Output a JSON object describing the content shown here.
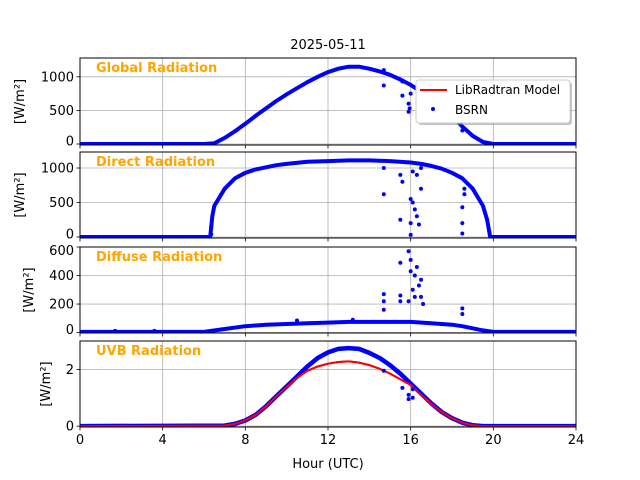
{
  "chart_data": {
    "type": "scatter",
    "title": "2025-05-11",
    "xlabel": "Hour (UTC)",
    "xlim": [
      0,
      24
    ],
    "xticks": [
      "0",
      "4",
      "8",
      "12",
      "16",
      "20",
      "24"
    ],
    "xtick_values": [
      0,
      4,
      8,
      12,
      16,
      20,
      24
    ],
    "grid": true,
    "legend": {
      "placement": "top-right of first panel",
      "entries": [
        "LibRadtran Model",
        "BSRN"
      ]
    },
    "colors": {
      "model": "#ff0000",
      "bsrn": "#0000ff",
      "title": "#ffa500"
    },
    "panels": [
      {
        "name": "Global Radiation",
        "ylabel": "[W/m²]",
        "ylim": [
          -15,
          1280
        ],
        "yticks": [
          "0",
          "500",
          "1000"
        ],
        "ytick_values": [
          0,
          500,
          1000
        ],
        "x": [
          0,
          6,
          6.5,
          7,
          7.5,
          8,
          8.5,
          9,
          9.5,
          10,
          10.5,
          11,
          11.5,
          12,
          12.5,
          13,
          13.5,
          14,
          14.5,
          15,
          15.5,
          16,
          16.5,
          17,
          17.5,
          18,
          18.5,
          19,
          19.5,
          20,
          24
        ],
        "model": [
          0,
          0,
          10,
          90,
          190,
          300,
          420,
          530,
          640,
          740,
          830,
          920,
          1000,
          1070,
          1120,
          1150,
          1150,
          1120,
          1080,
          1030,
          960,
          880,
          780,
          690,
          570,
          420,
          260,
          120,
          30,
          0,
          0
        ],
        "bsrn": [
          0,
          0,
          10,
          90,
          190,
          300,
          420,
          530,
          640,
          740,
          830,
          920,
          1000,
          1070,
          1120,
          1150,
          1150,
          1120,
          1080,
          1030,
          960,
          880,
          780,
          690,
          570,
          420,
          260,
          120,
          30,
          0,
          0
        ],
        "bsrn_outliers": [
          [
            14.7,
            870
          ],
          [
            14.7,
            1100
          ],
          [
            15.6,
            720
          ],
          [
            15.6,
            930
          ],
          [
            15.9,
            600
          ],
          [
            15.9,
            480
          ],
          [
            15.95,
            530
          ],
          [
            16.0,
            750
          ],
          [
            18.5,
            200
          ],
          [
            18.5,
            350
          ]
        ]
      },
      {
        "name": "Direct Radiation",
        "ylabel": "[W/m²]",
        "ylim": [
          -15,
          1232
        ],
        "yticks": [
          "0",
          "500",
          "1000"
        ],
        "ytick_values": [
          0,
          500,
          1000
        ],
        "x": [
          0,
          6.3,
          6.4,
          6.5,
          7,
          7.5,
          8,
          8.5,
          9,
          9.5,
          10,
          11,
          12,
          13,
          14,
          15,
          16,
          16.5,
          17,
          17.5,
          18,
          18.5,
          19,
          19.5,
          19.7,
          19.85,
          24
        ],
        "model": [
          0,
          0,
          300,
          450,
          700,
          850,
          930,
          980,
          1010,
          1040,
          1060,
          1090,
          1100,
          1110,
          1110,
          1100,
          1080,
          1060,
          1030,
          990,
          930,
          850,
          700,
          450,
          250,
          0,
          0
        ],
        "bsrn": [
          0,
          0,
          300,
          450,
          700,
          850,
          930,
          980,
          1010,
          1040,
          1060,
          1090,
          1100,
          1110,
          1110,
          1100,
          1080,
          1060,
          1030,
          990,
          930,
          850,
          700,
          450,
          250,
          0,
          0
        ],
        "bsrn_outliers": [
          [
            6.35,
            40
          ],
          [
            6.35,
            150
          ],
          [
            14.7,
            620
          ],
          [
            14.7,
            1000
          ],
          [
            15.5,
            250
          ],
          [
            15.5,
            900
          ],
          [
            15.6,
            800
          ],
          [
            16,
            550
          ],
          [
            16,
            200
          ],
          [
            16,
            30
          ],
          [
            16.1,
            500
          ],
          [
            16.1,
            950
          ],
          [
            16.2,
            400
          ],
          [
            16.3,
            300
          ],
          [
            16.3,
            900
          ],
          [
            16.4,
            180
          ],
          [
            16.5,
            700
          ],
          [
            16.5,
            1000
          ],
          [
            18.5,
            50
          ],
          [
            18.5,
            200
          ],
          [
            18.5,
            430
          ],
          [
            18.6,
            620
          ],
          [
            18.6,
            700
          ]
        ]
      },
      {
        "name": "Diffuse Radiation",
        "ylabel": "[W/m²]",
        "ylim": [
          -3,
          600
        ],
        "yticks": [
          "0",
          "200",
          "400",
          "600"
        ],
        "ytick_values": [
          0,
          200,
          400,
          600
        ],
        "x": [
          0,
          6,
          7,
          8,
          9,
          10,
          11,
          12,
          13,
          14,
          15,
          16,
          17,
          18,
          18.5,
          19,
          19.5,
          20,
          24
        ],
        "model": [
          5,
          5,
          25,
          45,
          55,
          60,
          65,
          70,
          75,
          75,
          75,
          75,
          65,
          55,
          45,
          30,
          15,
          5,
          5
        ],
        "bsrn": [
          5,
          5,
          25,
          45,
          55,
          60,
          65,
          70,
          75,
          75,
          75,
          75,
          65,
          55,
          45,
          30,
          15,
          5,
          5
        ],
        "bsrn_outliers": [
          [
            1.7,
            12
          ],
          [
            3.6,
            12
          ],
          [
            10.5,
            85
          ],
          [
            13.2,
            90
          ],
          [
            14.7,
            270
          ],
          [
            14.7,
            220
          ],
          [
            14.7,
            160
          ],
          [
            15.5,
            490
          ],
          [
            15.5,
            260
          ],
          [
            15.5,
            220
          ],
          [
            15.9,
            570
          ],
          [
            15.9,
            220
          ],
          [
            16,
            510
          ],
          [
            16,
            430
          ],
          [
            16.1,
            300
          ],
          [
            16.2,
            400
          ],
          [
            16.2,
            250
          ],
          [
            16.3,
            460
          ],
          [
            16.4,
            330
          ],
          [
            16.5,
            370
          ],
          [
            16.5,
            250
          ],
          [
            16.6,
            200
          ],
          [
            18.5,
            170
          ],
          [
            18.5,
            130
          ]
        ]
      },
      {
        "name": "UVB Radiation",
        "ylabel": "[W/m²]",
        "ylim": [
          -0.03,
          3.0
        ],
        "yticks": [
          "0",
          "2"
        ],
        "ytick_values": [
          0,
          2
        ],
        "x": [
          0,
          7,
          7.5,
          8,
          8.5,
          9,
          9.5,
          10,
          10.5,
          11,
          11.5,
          12,
          12.5,
          13,
          13.5,
          14,
          14.5,
          15,
          15.5,
          16,
          16.5,
          17,
          17.5,
          18,
          18.5,
          19,
          19.5,
          24
        ],
        "model": [
          0,
          0.02,
          0.08,
          0.2,
          0.4,
          0.7,
          1.05,
          1.38,
          1.7,
          1.95,
          2.1,
          2.2,
          2.26,
          2.28,
          2.24,
          2.15,
          2.02,
          1.85,
          1.65,
          1.45,
          1.1,
          0.78,
          0.5,
          0.28,
          0.12,
          0.03,
          0,
          0
        ],
        "bsrn": [
          0,
          0.02,
          0.08,
          0.2,
          0.4,
          0.7,
          1.05,
          1.4,
          1.75,
          2.1,
          2.4,
          2.6,
          2.72,
          2.75,
          2.72,
          2.58,
          2.4,
          2.15,
          1.85,
          1.5,
          1.15,
          0.8,
          0.5,
          0.28,
          0.12,
          0.03,
          0,
          0
        ],
        "bsrn_outliers": [
          [
            14.7,
            1.95
          ],
          [
            15.6,
            1.35
          ],
          [
            15.9,
            1.1
          ],
          [
            15.9,
            0.95
          ],
          [
            16.1,
            1.0
          ],
          [
            16.1,
            1.3
          ]
        ]
      }
    ]
  }
}
